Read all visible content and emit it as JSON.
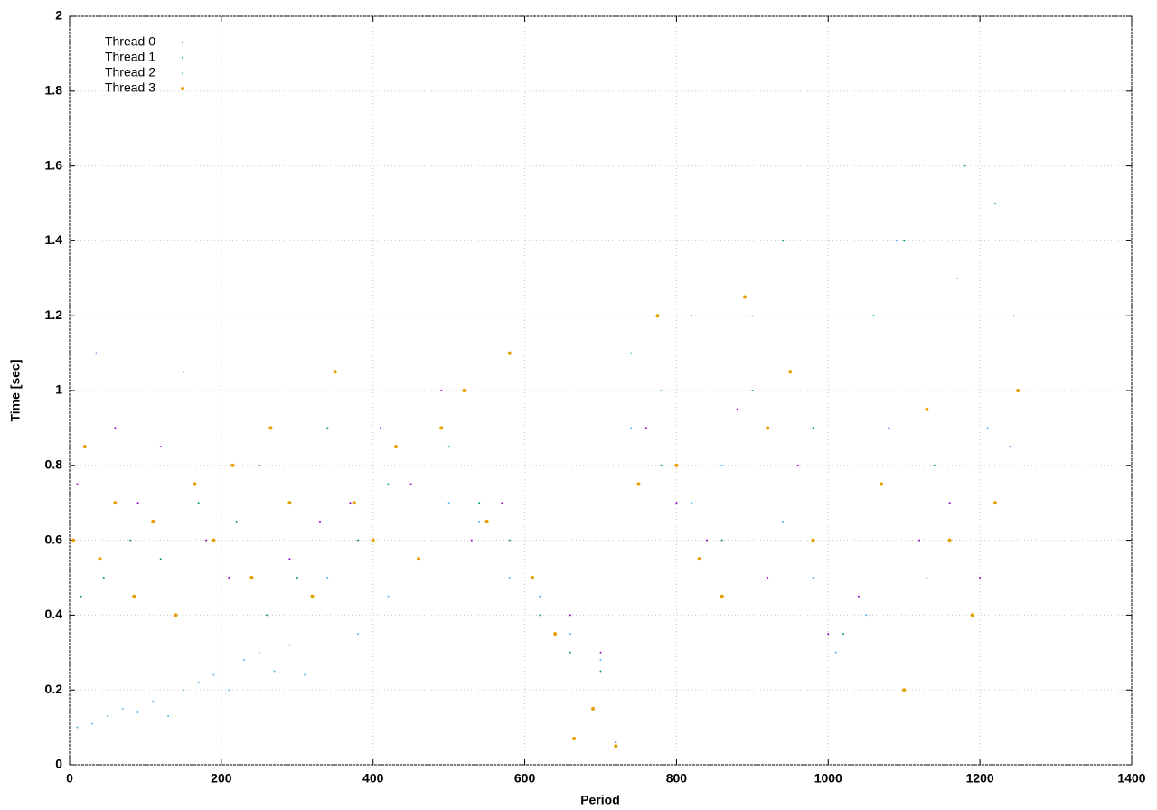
{
  "chart_data": {
    "type": "scatter",
    "x_label": "Period",
    "y_label": "Time [sec]",
    "xlim": [
      0,
      1400
    ],
    "ylim": [
      0,
      2
    ],
    "xticks": [
      0,
      200,
      400,
      600,
      800,
      1000,
      1200,
      1400
    ],
    "yticks": [
      0,
      0.2,
      0.4,
      0.6,
      0.8,
      1,
      1.2,
      1.4,
      1.6,
      1.8,
      2
    ],
    "grid": true,
    "legend": "top-left",
    "series": [
      {
        "name": "Thread 0",
        "color": "#9400d3",
        "marker_size": 1,
        "x": [
          10,
          35,
          60,
          90,
          120,
          150,
          180,
          210,
          250,
          290,
          330,
          370,
          410,
          450,
          490,
          530,
          570,
          620,
          660,
          700,
          720,
          760,
          800,
          840,
          880,
          920,
          960,
          1000,
          1040,
          1080,
          1120,
          1160,
          1200,
          1240
        ],
        "values": [
          0.75,
          1.1,
          0.9,
          0.7,
          0.85,
          1.05,
          0.6,
          0.5,
          0.8,
          0.55,
          0.65,
          0.7,
          0.9,
          0.75,
          1.0,
          0.6,
          0.7,
          0.45,
          0.4,
          0.3,
          0.06,
          0.9,
          0.7,
          0.6,
          0.95,
          0.5,
          0.8,
          0.35,
          0.45,
          0.9,
          0.6,
          0.7,
          0.5,
          0.85
        ]
      },
      {
        "name": "Thread 1",
        "color": "#009e73",
        "marker_size": 1,
        "x": [
          15,
          45,
          80,
          120,
          170,
          220,
          260,
          300,
          340,
          380,
          420,
          460,
          500,
          540,
          580,
          620,
          660,
          700,
          740,
          780,
          820,
          860,
          900,
          940,
          980,
          1020,
          1060,
          1100,
          1140,
          1180,
          1220,
          1250
        ],
        "values": [
          0.45,
          0.5,
          0.6,
          0.55,
          0.7,
          0.65,
          0.4,
          0.5,
          0.9,
          0.6,
          0.75,
          0.55,
          0.85,
          0.7,
          0.6,
          0.4,
          0.3,
          0.25,
          1.1,
          0.8,
          1.2,
          0.6,
          1.0,
          1.4,
          0.9,
          0.35,
          1.2,
          1.4,
          0.8,
          1.6,
          1.5,
          1.0
        ]
      },
      {
        "name": "Thread 2",
        "color": "#56b4e9",
        "marker_size": 1,
        "x": [
          10,
          30,
          50,
          70,
          90,
          110,
          130,
          150,
          170,
          190,
          210,
          230,
          250,
          270,
          290,
          310,
          340,
          380,
          420,
          460,
          500,
          540,
          580,
          620,
          660,
          700,
          740,
          780,
          820,
          860,
          900,
          940,
          980,
          1010,
          1050,
          1090,
          1130,
          1170,
          1210,
          1245
        ],
        "values": [
          0.1,
          0.11,
          0.13,
          0.15,
          0.14,
          0.17,
          0.13,
          0.2,
          0.22,
          0.24,
          0.2,
          0.28,
          0.3,
          0.25,
          0.32,
          0.24,
          0.5,
          0.35,
          0.45,
          0.55,
          0.7,
          0.65,
          0.5,
          0.45,
          0.35,
          0.28,
          0.9,
          1.0,
          0.7,
          0.8,
          1.2,
          0.65,
          0.5,
          0.3,
          0.4,
          1.4,
          0.5,
          1.3,
          0.9,
          1.2
        ]
      },
      {
        "name": "Thread 3",
        "color": "#e69f00",
        "marker_size": 2,
        "x": [
          5,
          20,
          40,
          60,
          85,
          110,
          140,
          165,
          190,
          215,
          240,
          265,
          290,
          320,
          350,
          375,
          400,
          430,
          460,
          490,
          520,
          550,
          580,
          610,
          640,
          665,
          690,
          720,
          750,
          775,
          800,
          830,
          860,
          890,
          920,
          950,
          980,
          1070,
          1100,
          1130,
          1160,
          1190,
          1220,
          1250
        ],
        "values": [
          0.6,
          0.85,
          0.55,
          0.7,
          0.45,
          0.65,
          0.4,
          0.75,
          0.6,
          0.8,
          0.5,
          0.9,
          0.7,
          0.45,
          1.05,
          0.7,
          0.6,
          0.85,
          0.55,
          0.9,
          1.0,
          0.65,
          1.1,
          0.5,
          0.35,
          0.07,
          0.15,
          0.05,
          0.75,
          1.2,
          0.8,
          0.55,
          0.45,
          1.25,
          0.9,
          1.05,
          0.6,
          0.75,
          0.2,
          0.95,
          0.6,
          0.4,
          0.7,
          1.0
        ]
      }
    ]
  }
}
